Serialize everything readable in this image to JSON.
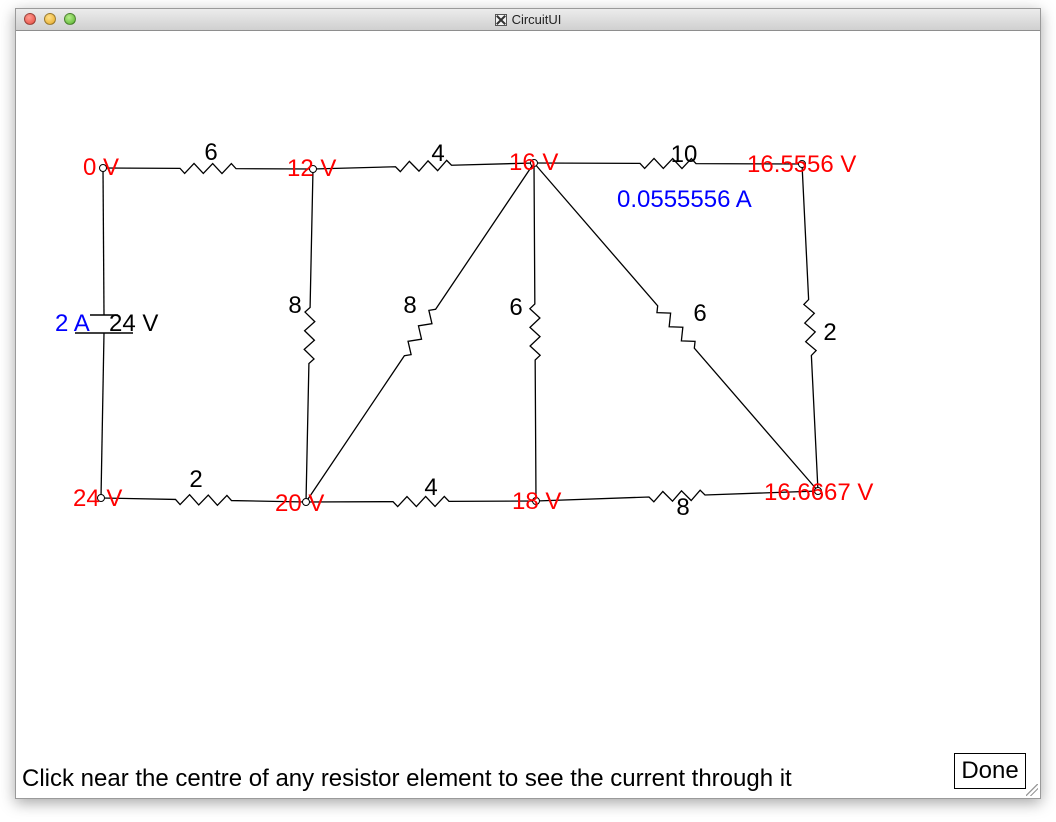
{
  "window": {
    "title": "CircuitUI",
    "icon": "x11-icon"
  },
  "circuit": {
    "node_voltages": [
      {
        "id": "n0",
        "label": "0 V"
      },
      {
        "id": "n12",
        "label": "12 V"
      },
      {
        "id": "n16",
        "label": "16 V"
      },
      {
        "id": "n16556",
        "label": "16.5556 V"
      },
      {
        "id": "n24",
        "label": "24 V"
      },
      {
        "id": "n20",
        "label": "20 V"
      },
      {
        "id": "n18",
        "label": "18 V"
      },
      {
        "id": "n16667",
        "label": "16.6667 V"
      }
    ],
    "resistors": [
      {
        "id": "r-top-1",
        "value": "6"
      },
      {
        "id": "r-top-2",
        "value": "4"
      },
      {
        "id": "r-top-3",
        "value": "10"
      },
      {
        "id": "r-mid-left",
        "value": "8"
      },
      {
        "id": "r-diag-1",
        "value": "8"
      },
      {
        "id": "r-mid-center",
        "value": "6"
      },
      {
        "id": "r-diag-2",
        "value": "6"
      },
      {
        "id": "r-right",
        "value": "2"
      },
      {
        "id": "r-bottom-1",
        "value": "2"
      },
      {
        "id": "r-bottom-2",
        "value": "4"
      },
      {
        "id": "r-bottom-3",
        "value": "8"
      }
    ],
    "battery": {
      "voltage": "24 V",
      "current": "2 A"
    },
    "selected_current": "0.0555556 A"
  },
  "colors": {
    "voltage": "#ff0000",
    "current": "#0000ff",
    "wire": "#000000"
  },
  "status": {
    "instruction": "Click near the centre of any resistor element to see the current through it"
  },
  "controls": {
    "done_label": "Done"
  }
}
